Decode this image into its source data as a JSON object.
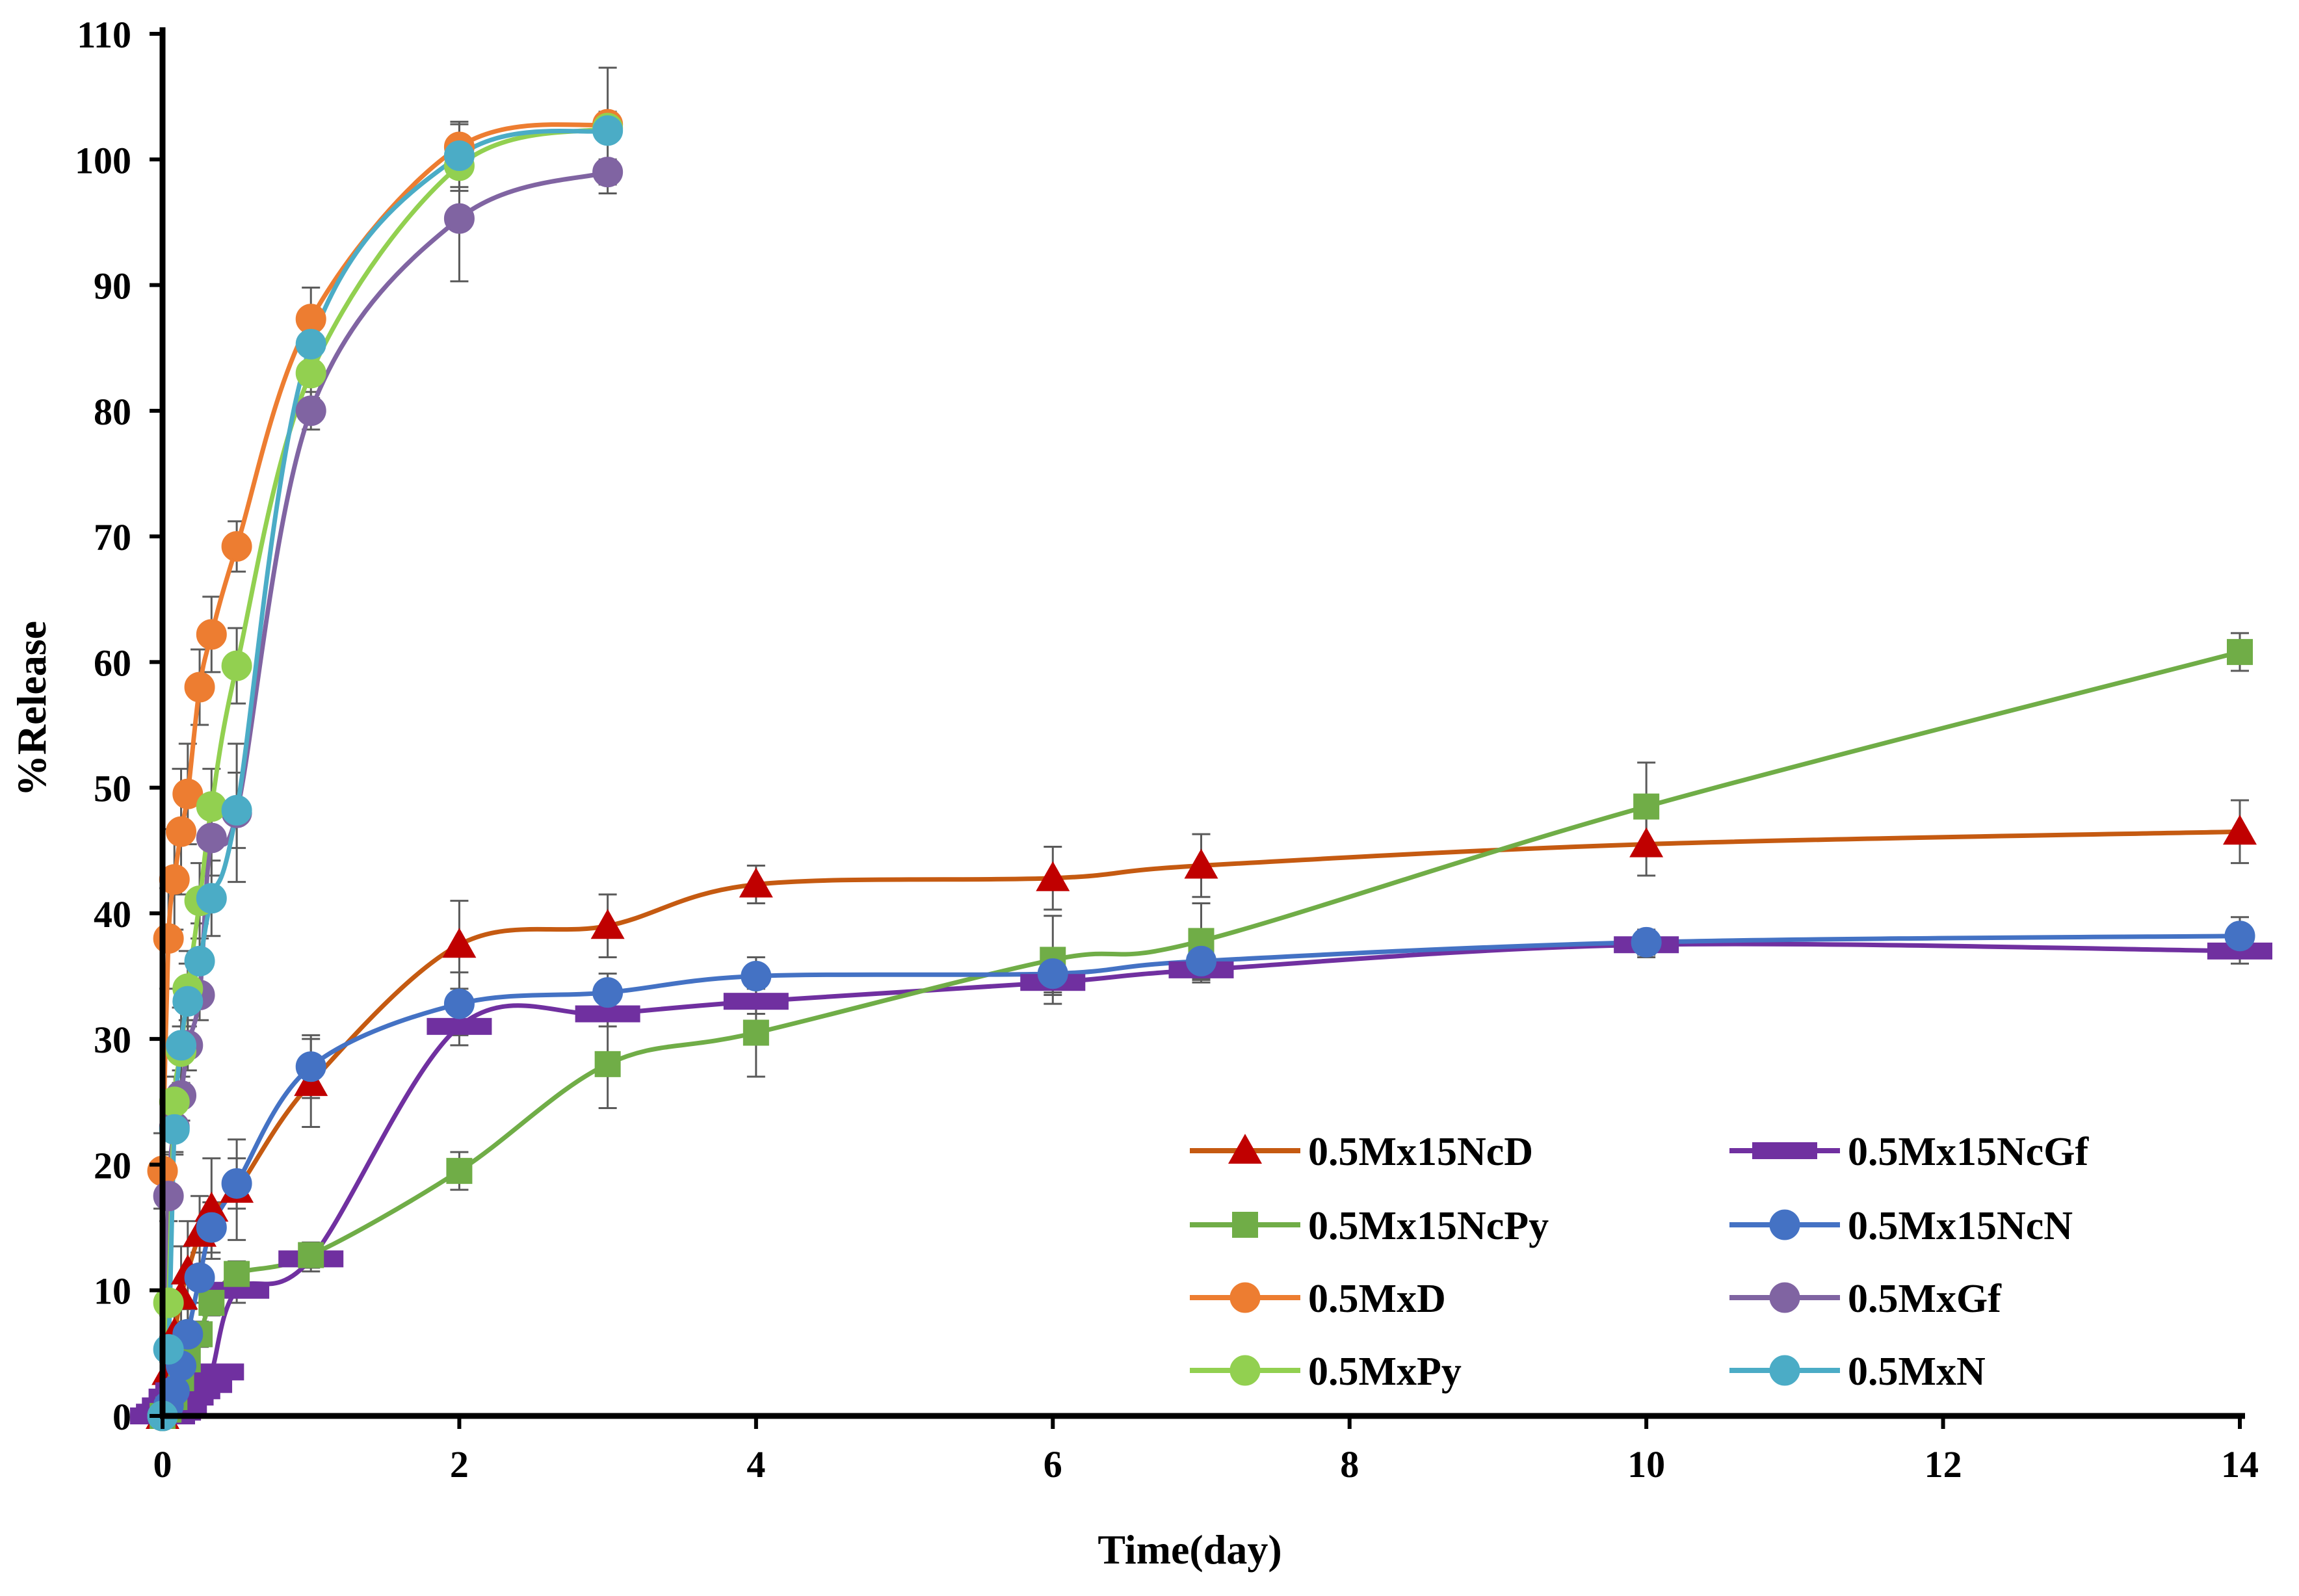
{
  "chart_data": {
    "type": "line",
    "title": "",
    "xlabel": "Time(day)",
    "ylabel": "%Release",
    "xlim": [
      0,
      14
    ],
    "ylim": [
      0,
      110
    ],
    "xticks": [
      0,
      2,
      4,
      6,
      8,
      10,
      12,
      14
    ],
    "yticks": [
      0,
      10,
      20,
      30,
      40,
      50,
      60,
      70,
      80,
      90,
      100,
      110
    ],
    "grid": false,
    "legend_position": "bottom-right",
    "series": [
      {
        "name": "0.5Mx15NcD",
        "color": "#C55A11",
        "marker": "triangle",
        "marker_color": "#C00000",
        "x": [
          0,
          0.04,
          0.08,
          0.125,
          0.17,
          0.25,
          0.33,
          0.5,
          1,
          2,
          3,
          4,
          6,
          7,
          10,
          14
        ],
        "y": [
          0,
          3.5,
          6.5,
          9.5,
          11.5,
          14.5,
          16.5,
          18,
          26.5,
          37.5,
          39,
          42.3,
          42.8,
          43.8,
          45.5,
          46.5
        ],
        "err": [
          0,
          1,
          2,
          4,
          4,
          3,
          4,
          4,
          3.5,
          3.5,
          2.5,
          1.5,
          2.5,
          2.5,
          2.5,
          2.5
        ]
      },
      {
        "name": "0.5Mx15NcGf",
        "color": "#7030A0",
        "marker": "dash",
        "marker_color": "#7030A0",
        "x": [
          0,
          0.04,
          0.08,
          0.125,
          0.17,
          0.25,
          0.33,
          0.5,
          1,
          2,
          3,
          4,
          6,
          7,
          10,
          14
        ],
        "y": [
          0,
          0.3,
          0.8,
          1.5,
          2,
          2.5,
          3.5,
          10,
          12.5,
          31,
          32,
          33,
          34.5,
          35.5,
          37.5,
          37
        ],
        "err": [
          0,
          0,
          0,
          0,
          0,
          0.5,
          0.5,
          1,
          1,
          1.5,
          1,
          1,
          1,
          1,
          1,
          1
        ]
      },
      {
        "name": "0.5Mx15NcPy",
        "color": "#70AD47",
        "marker": "square",
        "marker_color": "#70AD47",
        "x": [
          0,
          0.04,
          0.08,
          0.125,
          0.17,
          0.25,
          0.33,
          0.5,
          1,
          2,
          3,
          4,
          6,
          7,
          10,
          14
        ],
        "y": [
          0,
          0.5,
          1.5,
          3,
          4.5,
          6.5,
          9,
          11.3,
          12.8,
          19.5,
          28,
          30.5,
          36.3,
          37.8,
          48.5,
          60.8
        ],
        "err": [
          0,
          0,
          0.5,
          0.5,
          1,
          1,
          1,
          1,
          1,
          1.5,
          3.5,
          3.5,
          3.5,
          3,
          3.5,
          1.5
        ]
      },
      {
        "name": "0.5Mx15NcN",
        "color": "#4472C4",
        "marker": "circle",
        "marker_color": "#4472C4",
        "x": [
          0,
          0.04,
          0.08,
          0.125,
          0.17,
          0.25,
          0.33,
          0.5,
          1,
          2,
          3,
          4,
          6,
          7,
          10,
          14
        ],
        "y": [
          0,
          0.8,
          2,
          4,
          6.5,
          11,
          15,
          18.5,
          27.8,
          32.8,
          33.7,
          35,
          35.2,
          36.2,
          37.7,
          38.2
        ],
        "err": [
          0,
          0.5,
          1,
          1.5,
          2,
          2,
          2,
          2,
          2.5,
          2.5,
          1.5,
          1.5,
          1.5,
          1.5,
          1,
          1.5
        ]
      },
      {
        "name": "0.5MxD",
        "color": "#ED7D31",
        "marker": "circle",
        "marker_color": "#ED7D31",
        "x": [
          0,
          0.04,
          0.08,
          0.125,
          0.17,
          0.25,
          0.33,
          0.5,
          1,
          2,
          3
        ],
        "y": [
          19.5,
          38,
          42.7,
          46.5,
          49.5,
          58,
          62.2,
          69.2,
          87.3,
          101,
          102.8
        ],
        "err": [
          3,
          4,
          4,
          5,
          4,
          3,
          3,
          2,
          2.5,
          2,
          1
        ]
      },
      {
        "name": "0.5MxGf",
        "color": "#8064A2",
        "marker": "circle",
        "marker_color": "#8064A2",
        "x": [
          0,
          0.04,
          0.08,
          0.125,
          0.17,
          0.25,
          0.33,
          0.5,
          1,
          2,
          3
        ],
        "y": [
          0,
          17.5,
          23,
          25.5,
          29.5,
          33.5,
          46,
          48,
          80,
          95.3,
          99
        ],
        "err": [
          0,
          2,
          2,
          2,
          2,
          2,
          3,
          5.5,
          1.5,
          5,
          1
        ]
      },
      {
        "name": "0.5MxPy",
        "color": "#92D050",
        "marker": "circle",
        "marker_color": "#92D050",
        "x": [
          0,
          0.04,
          0.08,
          0.125,
          0.17,
          0.25,
          0.33,
          0.5,
          1,
          2,
          3
        ],
        "y": [
          0,
          9,
          25,
          29,
          34,
          41,
          48.5,
          59.7,
          83,
          99.5,
          102.5
        ],
        "err": [
          0,
          1,
          2,
          2,
          3,
          3,
          3,
          3,
          2,
          2,
          1
        ]
      },
      {
        "name": "0.5MxN",
        "color": "#4BACC6",
        "marker": "circle",
        "marker_color": "#4BACC6",
        "x": [
          0,
          0.04,
          0.08,
          0.125,
          0.17,
          0.25,
          0.33,
          0.5,
          1,
          2,
          3
        ],
        "y": [
          0,
          5.3,
          22.8,
          29.5,
          33,
          36.2,
          41.2,
          48.2,
          85.3,
          100.3,
          102.3
        ],
        "err": [
          0,
          1,
          2,
          3,
          3,
          3,
          3,
          3,
          2.5,
          2.5,
          5
        ]
      }
    ]
  }
}
